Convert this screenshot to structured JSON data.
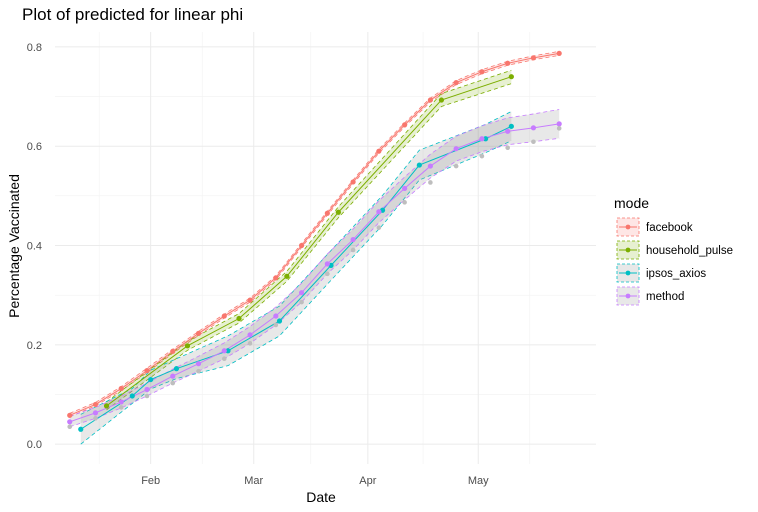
{
  "chart_data": {
    "type": "line",
    "title": "Plot of predicted for linear phi",
    "xlabel": "Date",
    "ylabel": "Percentage Vaccinated",
    "x_axis": {
      "type": "date",
      "range": [
        "2021-01-06",
        "2021-06-02"
      ],
      "ticks": [
        {
          "date": "2021-02-01",
          "label": "Feb"
        },
        {
          "date": "2021-03-01",
          "label": "Mar"
        },
        {
          "date": "2021-04-01",
          "label": "Apr"
        },
        {
          "date": "2021-05-01",
          "label": "May"
        }
      ]
    },
    "y_axis": {
      "range": [
        -0.04,
        0.83
      ],
      "ticks": [
        0.0,
        0.2,
        0.4,
        0.6,
        0.8
      ],
      "tick_labels": [
        "0.0",
        "0.2",
        "0.4",
        "0.6",
        "0.8"
      ]
    },
    "grid": true,
    "legend": {
      "title": "mode",
      "position": "right"
    },
    "series": [
      {
        "name": "facebook",
        "color": "#F8766D",
        "points": [
          {
            "date": "2021-01-10",
            "y": 0.058,
            "lo": 0.055,
            "hi": 0.062
          },
          {
            "date": "2021-01-17",
            "y": 0.08,
            "lo": 0.077,
            "hi": 0.084
          },
          {
            "date": "2021-01-24",
            "y": 0.112,
            "lo": 0.108,
            "hi": 0.116
          },
          {
            "date": "2021-01-31",
            "y": 0.148,
            "lo": 0.144,
            "hi": 0.153
          },
          {
            "date": "2021-02-07",
            "y": 0.187,
            "lo": 0.183,
            "hi": 0.191
          },
          {
            "date": "2021-02-14",
            "y": 0.223,
            "lo": 0.219,
            "hi": 0.227
          },
          {
            "date": "2021-02-21",
            "y": 0.258,
            "lo": 0.254,
            "hi": 0.262
          },
          {
            "date": "2021-02-28",
            "y": 0.29,
            "lo": 0.286,
            "hi": 0.294
          },
          {
            "date": "2021-03-07",
            "y": 0.335,
            "lo": 0.331,
            "hi": 0.339
          },
          {
            "date": "2021-03-14",
            "y": 0.4,
            "lo": 0.396,
            "hi": 0.404
          },
          {
            "date": "2021-03-21",
            "y": 0.465,
            "lo": 0.461,
            "hi": 0.469
          },
          {
            "date": "2021-03-28",
            "y": 0.528,
            "lo": 0.524,
            "hi": 0.532
          },
          {
            "date": "2021-04-04",
            "y": 0.59,
            "lo": 0.586,
            "hi": 0.594
          },
          {
            "date": "2021-04-11",
            "y": 0.643,
            "lo": 0.639,
            "hi": 0.647
          },
          {
            "date": "2021-04-18",
            "y": 0.693,
            "lo": 0.689,
            "hi": 0.697
          },
          {
            "date": "2021-04-25",
            "y": 0.728,
            "lo": 0.724,
            "hi": 0.732
          },
          {
            "date": "2021-05-02",
            "y": 0.75,
            "lo": 0.746,
            "hi": 0.754
          },
          {
            "date": "2021-05-09",
            "y": 0.767,
            "lo": 0.763,
            "hi": 0.771
          },
          {
            "date": "2021-05-16",
            "y": 0.778,
            "lo": 0.774,
            "hi": 0.782
          },
          {
            "date": "2021-05-23",
            "y": 0.787,
            "lo": 0.783,
            "hi": 0.791
          }
        ]
      },
      {
        "name": "household_pulse",
        "color": "#7CAE00",
        "points": [
          {
            "date": "2021-01-20",
            "y": 0.077,
            "lo": 0.069,
            "hi": 0.085
          },
          {
            "date": "2021-02-11",
            "y": 0.198,
            "lo": 0.189,
            "hi": 0.207
          },
          {
            "date": "2021-02-25",
            "y": 0.253,
            "lo": 0.244,
            "hi": 0.263
          },
          {
            "date": "2021-03-10",
            "y": 0.338,
            "lo": 0.328,
            "hi": 0.348
          },
          {
            "date": "2021-03-24",
            "y": 0.467,
            "lo": 0.456,
            "hi": 0.478
          },
          {
            "date": "2021-04-21",
            "y": 0.693,
            "lo": 0.68,
            "hi": 0.706
          },
          {
            "date": "2021-05-10",
            "y": 0.74,
            "lo": 0.726,
            "hi": 0.753
          }
        ]
      },
      {
        "name": "ipsos_axios",
        "color": "#00BFC4",
        "points": [
          {
            "date": "2021-01-13",
            "y": 0.03,
            "lo": 0.0,
            "hi": 0.06
          },
          {
            "date": "2021-01-27",
            "y": 0.097,
            "lo": 0.082,
            "hi": 0.112
          },
          {
            "date": "2021-02-01",
            "y": 0.13,
            "lo": 0.111,
            "hi": 0.149
          },
          {
            "date": "2021-02-08",
            "y": 0.152,
            "lo": 0.132,
            "hi": 0.172
          },
          {
            "date": "2021-02-22",
            "y": 0.188,
            "lo": 0.158,
            "hi": 0.218
          },
          {
            "date": "2021-03-08",
            "y": 0.248,
            "lo": 0.218,
            "hi": 0.278
          },
          {
            "date": "2021-03-22",
            "y": 0.36,
            "lo": 0.33,
            "hi": 0.39
          },
          {
            "date": "2021-04-05",
            "y": 0.471,
            "lo": 0.441,
            "hi": 0.501
          },
          {
            "date": "2021-04-15",
            "y": 0.562,
            "lo": 0.532,
            "hi": 0.592
          },
          {
            "date": "2021-05-03",
            "y": 0.615,
            "lo": 0.587,
            "hi": 0.644
          },
          {
            "date": "2021-05-10",
            "y": 0.64,
            "lo": 0.611,
            "hi": 0.67
          }
        ]
      },
      {
        "name": "method",
        "color": "#C77CFF",
        "points": [
          {
            "date": "2021-01-10",
            "y": 0.045,
            "lo": 0.035,
            "hi": 0.056
          },
          {
            "date": "2021-01-17",
            "y": 0.063,
            "lo": 0.052,
            "hi": 0.074
          },
          {
            "date": "2021-01-24",
            "y": 0.085,
            "lo": 0.073,
            "hi": 0.097
          },
          {
            "date": "2021-01-31",
            "y": 0.11,
            "lo": 0.097,
            "hi": 0.123
          },
          {
            "date": "2021-02-07",
            "y": 0.137,
            "lo": 0.123,
            "hi": 0.151
          },
          {
            "date": "2021-02-14",
            "y": 0.162,
            "lo": 0.147,
            "hi": 0.177
          },
          {
            "date": "2021-02-21",
            "y": 0.188,
            "lo": 0.172,
            "hi": 0.204
          },
          {
            "date": "2021-02-28",
            "y": 0.22,
            "lo": 0.203,
            "hi": 0.237
          },
          {
            "date": "2021-03-07",
            "y": 0.258,
            "lo": 0.24,
            "hi": 0.276
          },
          {
            "date": "2021-03-14",
            "y": 0.305,
            "lo": 0.286,
            "hi": 0.324
          },
          {
            "date": "2021-03-21",
            "y": 0.363,
            "lo": 0.343,
            "hi": 0.383
          },
          {
            "date": "2021-03-28",
            "y": 0.412,
            "lo": 0.391,
            "hi": 0.433
          },
          {
            "date": "2021-04-04",
            "y": 0.468,
            "lo": 0.446,
            "hi": 0.49
          },
          {
            "date": "2021-04-11",
            "y": 0.515,
            "lo": 0.492,
            "hi": 0.538
          },
          {
            "date": "2021-04-18",
            "y": 0.56,
            "lo": 0.536,
            "hi": 0.584
          },
          {
            "date": "2021-04-25",
            "y": 0.595,
            "lo": 0.57,
            "hi": 0.62
          },
          {
            "date": "2021-05-02",
            "y": 0.615,
            "lo": 0.589,
            "hi": 0.641
          },
          {
            "date": "2021-05-09",
            "y": 0.63,
            "lo": 0.603,
            "hi": 0.657
          },
          {
            "date": "2021-05-16",
            "y": 0.637,
            "lo": 0.609,
            "hi": 0.665
          },
          {
            "date": "2021-05-23",
            "y": 0.645,
            "lo": 0.616,
            "hi": 0.674
          }
        ]
      },
      {
        "name": "",
        "color": "#BEBEBE",
        "points": [
          {
            "date": "2021-01-10",
            "y": 0.035
          },
          {
            "date": "2021-01-17",
            "y": 0.052
          },
          {
            "date": "2021-01-24",
            "y": 0.074
          },
          {
            "date": "2021-01-31",
            "y": 0.097
          },
          {
            "date": "2021-02-07",
            "y": 0.123
          },
          {
            "date": "2021-02-14",
            "y": 0.147
          },
          {
            "date": "2021-02-21",
            "y": 0.172
          },
          {
            "date": "2021-02-28",
            "y": 0.203
          },
          {
            "date": "2021-03-07",
            "y": 0.24
          },
          {
            "date": "2021-03-14",
            "y": 0.286
          },
          {
            "date": "2021-03-21",
            "y": 0.343
          },
          {
            "date": "2021-03-28",
            "y": 0.391
          },
          {
            "date": "2021-04-04",
            "y": 0.436
          },
          {
            "date": "2021-04-11",
            "y": 0.487
          },
          {
            "date": "2021-04-18",
            "y": 0.527
          },
          {
            "date": "2021-04-25",
            "y": 0.56
          },
          {
            "date": "2021-05-02",
            "y": 0.58
          },
          {
            "date": "2021-05-09",
            "y": 0.597
          },
          {
            "date": "2021-05-16",
            "y": 0.609
          },
          {
            "date": "2021-05-23",
            "y": 0.636
          }
        ]
      }
    ]
  }
}
